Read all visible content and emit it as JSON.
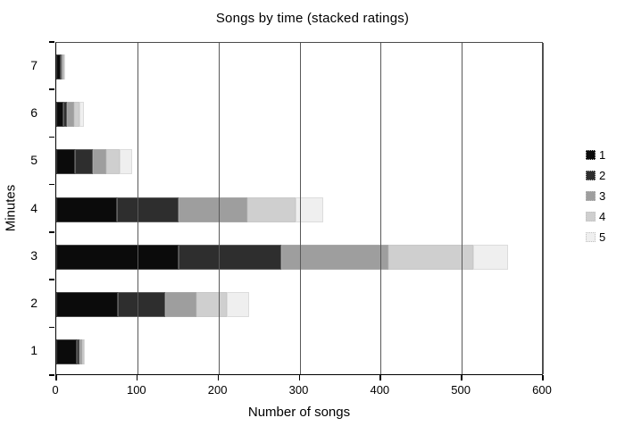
{
  "title": "Songs by time (stacked ratings)",
  "axes": {
    "x_title": "Number of songs",
    "y_title": "Minutes"
  },
  "chart_data": {
    "type": "bar",
    "orientation": "horizontal",
    "stacked": true,
    "title": "Songs by time (stacked ratings)",
    "xlabel": "Number of songs",
    "ylabel": "Minutes",
    "categories": [
      "1",
      "2",
      "3",
      "4",
      "5",
      "6",
      "7"
    ],
    "series": [
      {
        "name": "1",
        "color": "#0b0b0b",
        "values": [
          25,
          76,
          150,
          75,
          23,
          9,
          5
        ]
      },
      {
        "name": "2",
        "color": "#2e2e2e",
        "values": [
          4,
          58,
          127,
          75,
          22,
          4,
          2
        ]
      },
      {
        "name": "3",
        "color": "#9e9e9e",
        "values": [
          3,
          38,
          132,
          85,
          17,
          9,
          2
        ]
      },
      {
        "name": "4",
        "color": "#cfcfcf",
        "values": [
          2,
          38,
          104,
          59,
          16,
          7,
          1
        ]
      },
      {
        "name": "5",
        "color": "#efefef",
        "values": [
          1,
          27,
          43,
          35,
          15,
          5,
          1
        ]
      }
    ],
    "totals_by_category": [
      35,
      237,
      556,
      329,
      93,
      34,
      11
    ],
    "xlim": [
      0,
      600
    ],
    "xticks": [
      0,
      100,
      200,
      300,
      400,
      500,
      600
    ],
    "grid": true,
    "gridlines_over_bars": true,
    "legend_position": "right",
    "legend_labels": [
      "1",
      "2",
      "3",
      "4",
      "5"
    ],
    "colors": {
      "axis": "#000000",
      "gridline": "#595959",
      "background": "#ffffff"
    }
  }
}
